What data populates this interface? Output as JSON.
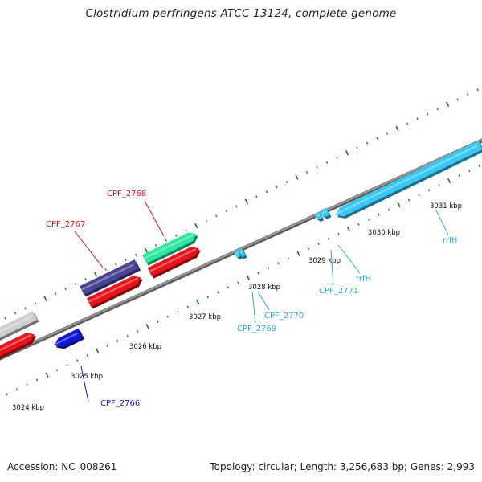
{
  "header": {
    "title": "Clostridium perfringens ATCC 13124, complete genome"
  },
  "footer": {
    "accession": "Accession: NC_008261",
    "summary": "Topology: circular; Length: 3,256,683 bp; Genes: 2,993"
  },
  "scale": {
    "unit": "kbp",
    "labels": [
      "3024 kbp",
      "3025 kbp",
      "3026 kbp",
      "3027 kbp",
      "3028 kbp",
      "3029 kbp",
      "3030 kbp",
      "3031 kbp"
    ]
  },
  "colors": {
    "backbone": "#7f7f7f",
    "tick": "#1a7a1a",
    "cds_red": "#e8141a",
    "cds_navy": "#4a4495",
    "cds_green": "#2ee8a0",
    "cds_grey": "#cfcfcf",
    "cds_blue": "#1416d8",
    "rrna_cyan": "#39c8f4",
    "label_red": "#e01010",
    "label_cyan": "#2aaad8",
    "label_blue": "#1a1ac8"
  },
  "genes": [
    {
      "label": "CPF_2766",
      "color": "label_blue"
    },
    {
      "label": "CPF_2767",
      "color": "label_red"
    },
    {
      "label": "CPF_2768",
      "color": "label_red"
    },
    {
      "label": "CPF_2769",
      "color": "label_cyan"
    },
    {
      "label": "CPF_2770",
      "color": "label_cyan"
    },
    {
      "label": "CPF_2771",
      "color": "label_cyan"
    },
    {
      "label": "rrfH",
      "color": "label_cyan"
    },
    {
      "label": "rrlH",
      "color": "label_cyan"
    }
  ]
}
